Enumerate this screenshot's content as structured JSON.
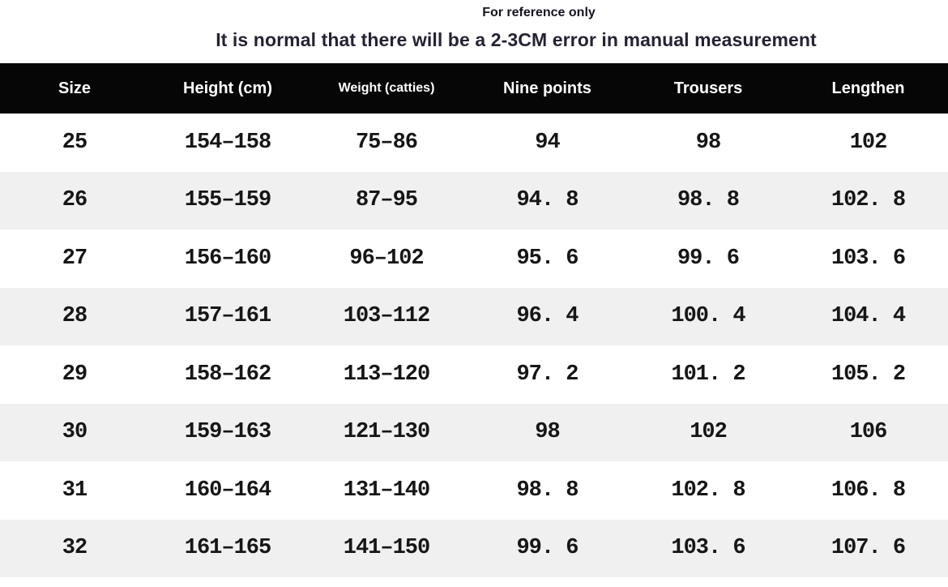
{
  "header": {
    "note": "For reference only",
    "title": "It is normal that there will be a 2-3CM error in manual measurement"
  },
  "table": {
    "columns": [
      "Size",
      "Height (cm)",
      "Weight (catties)",
      "Nine points",
      "Trousers",
      "Lengthen"
    ],
    "rows": [
      [
        "25",
        "154–158",
        "75–86",
        "94",
        "98",
        "102"
      ],
      [
        "26",
        "155–159",
        "87–95",
        "94. 8",
        "98. 8",
        "102. 8"
      ],
      [
        "27",
        "156–160",
        "96–102",
        "95. 6",
        "99. 6",
        "103. 6"
      ],
      [
        "28",
        "157–161",
        "103–112",
        "96. 4",
        "100. 4",
        "104. 4"
      ],
      [
        "29",
        "158–162",
        "113–120",
        "97. 2",
        "101. 2",
        "105. 2"
      ],
      [
        "30",
        "159–163",
        "121–130",
        "98",
        "102",
        "106"
      ],
      [
        "31",
        "160–164",
        "131–140",
        "98. 8",
        "102. 8",
        "106. 8"
      ],
      [
        "32",
        "161–165",
        "141–150",
        "99. 6",
        "103. 6",
        "107. 6"
      ]
    ]
  },
  "colors": {
    "header_bg": "#060606",
    "header_text": "#ffffff",
    "row_alt_bg": "#f0f0f0",
    "body_text": "#161616",
    "title_text": "#262233"
  },
  "chart_data": {
    "type": "table",
    "note": "For reference only",
    "title": "It is normal that there will be a 2-3CM error in manual measurement",
    "columns": [
      "Size",
      "Height (cm)",
      "Weight (catties)",
      "Nine points",
      "Trousers",
      "Lengthen"
    ],
    "rows": [
      {
        "size": 25,
        "height_cm": "154-158",
        "weight_catties": "75-86",
        "nine_points": 94,
        "trousers": 98,
        "lengthen": 102
      },
      {
        "size": 26,
        "height_cm": "155-159",
        "weight_catties": "87-95",
        "nine_points": 94.8,
        "trousers": 98.8,
        "lengthen": 102.8
      },
      {
        "size": 27,
        "height_cm": "156-160",
        "weight_catties": "96-102",
        "nine_points": 95.6,
        "trousers": 99.6,
        "lengthen": 103.6
      },
      {
        "size": 28,
        "height_cm": "157-161",
        "weight_catties": "103-112",
        "nine_points": 96.4,
        "trousers": 100.4,
        "lengthen": 104.4
      },
      {
        "size": 29,
        "height_cm": "158-162",
        "weight_catties": "113-120",
        "nine_points": 97.2,
        "trousers": 101.2,
        "lengthen": 105.2
      },
      {
        "size": 30,
        "height_cm": "159-163",
        "weight_catties": "121-130",
        "nine_points": 98,
        "trousers": 102,
        "lengthen": 106
      },
      {
        "size": 31,
        "height_cm": "160-164",
        "weight_catties": "131-140",
        "nine_points": 98.8,
        "trousers": 102.8,
        "lengthen": 106.8
      },
      {
        "size": 32,
        "height_cm": "161-165",
        "weight_catties": "141-150",
        "nine_points": 99.6,
        "trousers": 103.6,
        "lengthen": 107.6
      }
    ]
  }
}
